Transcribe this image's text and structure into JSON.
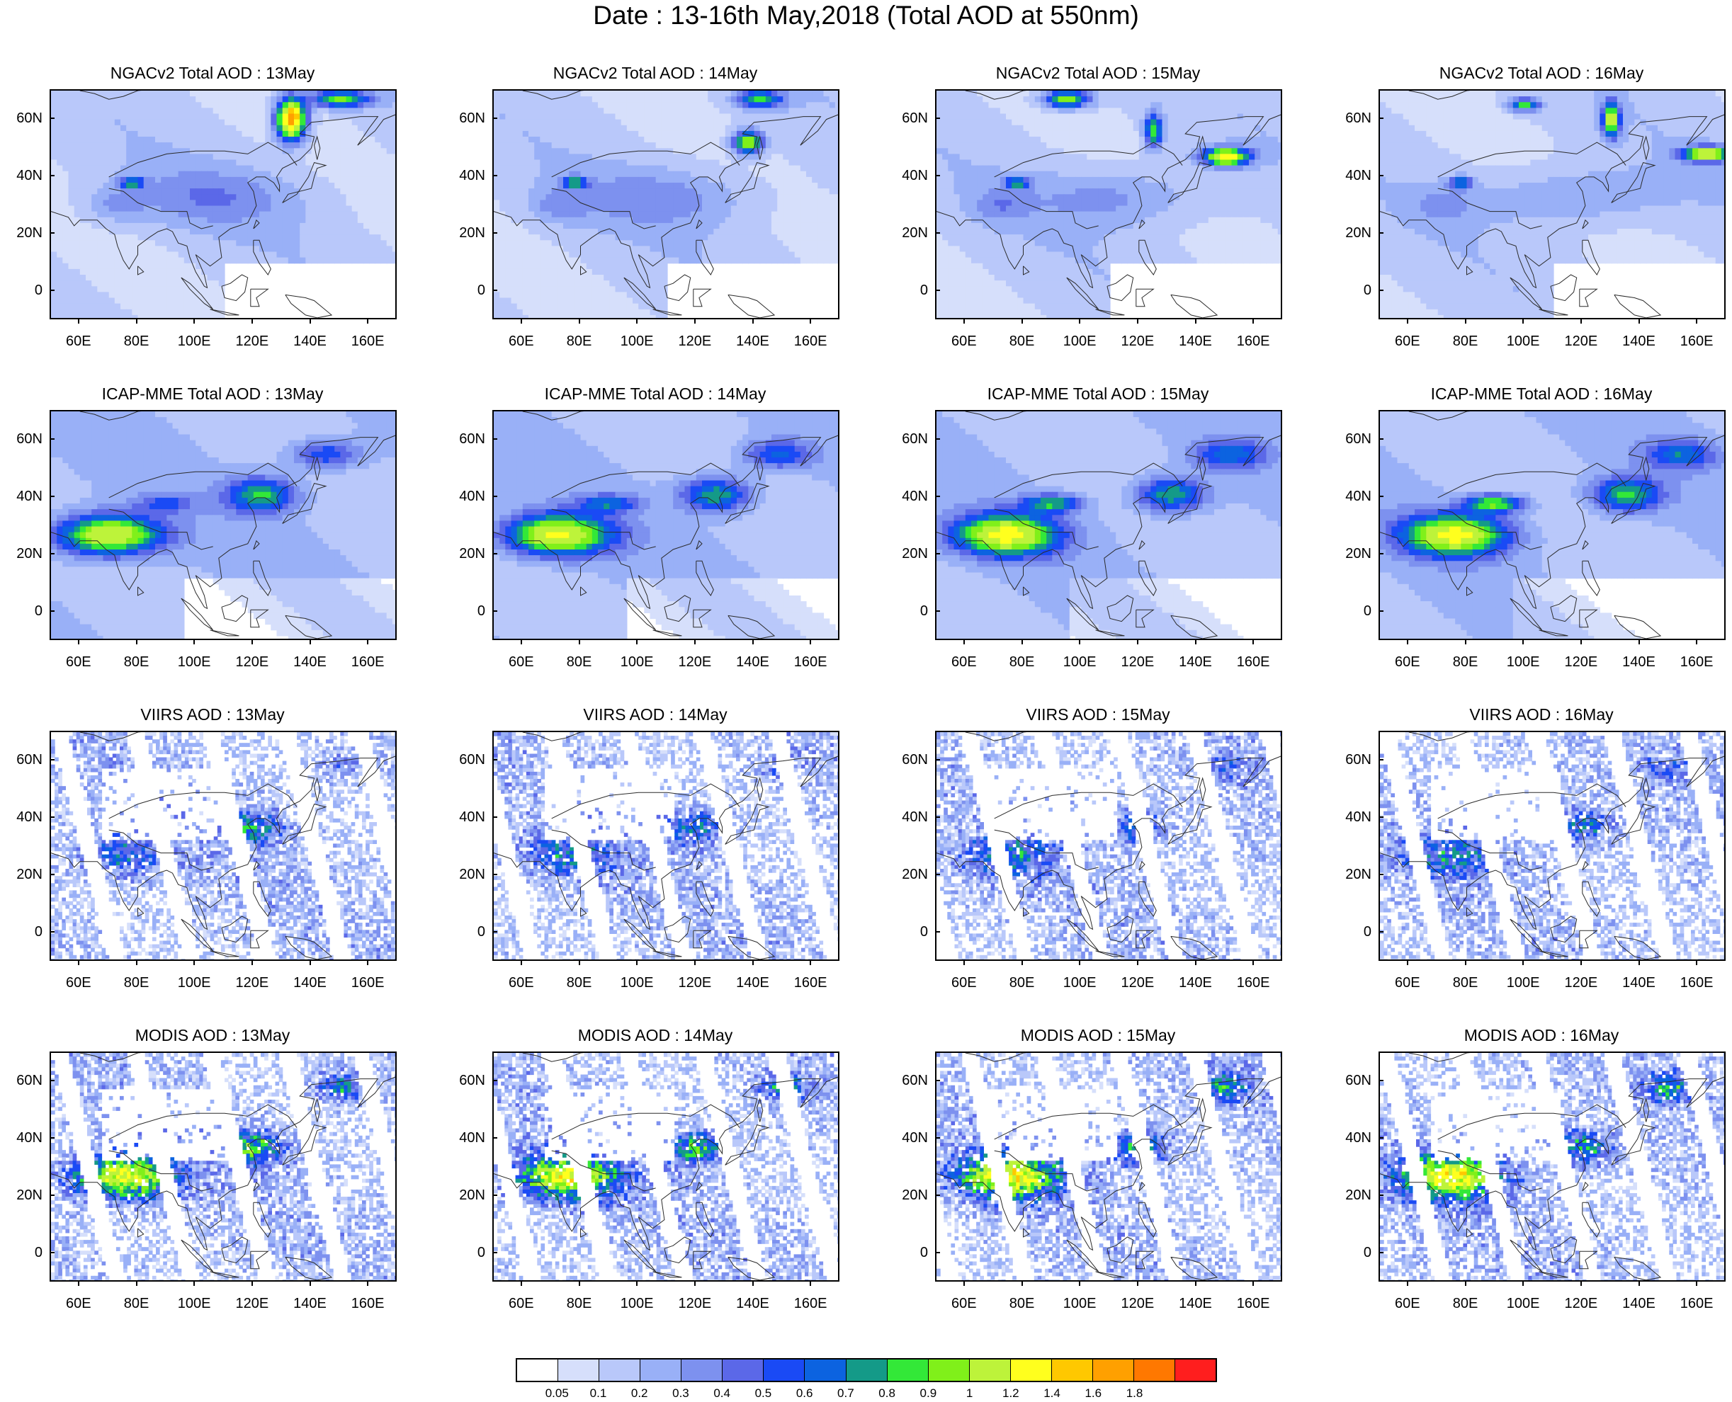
{
  "title": "Date : 13-16th May,2018 (Total AOD at 550nm)",
  "panels": [
    {
      "title": "NGACv2 Total AOD : 13May",
      "source": "NGACv2",
      "day": 13
    },
    {
      "title": "NGACv2 Total AOD : 14May",
      "source": "NGACv2",
      "day": 14
    },
    {
      "title": "NGACv2 Total AOD : 15May",
      "source": "NGACv2",
      "day": 15
    },
    {
      "title": "NGACv2 Total AOD : 16May",
      "source": "NGACv2",
      "day": 16
    },
    {
      "title": "ICAP-MME Total AOD : 13May",
      "source": "ICAP",
      "day": 13
    },
    {
      "title": "ICAP-MME Total AOD : 14May",
      "source": "ICAP",
      "day": 14
    },
    {
      "title": "ICAP-MME Total AOD : 15May",
      "source": "ICAP",
      "day": 15
    },
    {
      "title": "ICAP-MME Total AOD : 16May",
      "source": "ICAP",
      "day": 16
    },
    {
      "title": "VIIRS AOD : 13May",
      "source": "VIIRS",
      "day": 13
    },
    {
      "title": "VIIRS AOD : 14May",
      "source": "VIIRS",
      "day": 14
    },
    {
      "title": "VIIRS AOD : 15May",
      "source": "VIIRS",
      "day": 15
    },
    {
      "title": "VIIRS AOD : 16May",
      "source": "VIIRS",
      "day": 16
    },
    {
      "title": "MODIS AOD : 13May",
      "source": "MODIS",
      "day": 13
    },
    {
      "title": "MODIS AOD : 14May",
      "source": "MODIS",
      "day": 14
    },
    {
      "title": "MODIS AOD : 15May",
      "source": "MODIS",
      "day": 15
    },
    {
      "title": "MODIS AOD : 16May",
      "source": "MODIS",
      "day": 16
    }
  ],
  "map_extent": {
    "lon_min": 50,
    "lon_max": 170,
    "lat_min": -10,
    "lat_max": 70
  },
  "lon_ticks": [
    {
      "value": 60,
      "label": "60E"
    },
    {
      "value": 80,
      "label": "80E"
    },
    {
      "value": 100,
      "label": "100E"
    },
    {
      "value": 120,
      "label": "120E"
    },
    {
      "value": 140,
      "label": "140E"
    },
    {
      "value": 160,
      "label": "160E"
    }
  ],
  "lat_ticks": [
    {
      "value": 60,
      "label": "60N"
    },
    {
      "value": 40,
      "label": "40N"
    },
    {
      "value": 20,
      "label": "20N"
    },
    {
      "value": 0,
      "label": "0"
    }
  ],
  "colorbar": {
    "colors": [
      "#ffffff",
      "#d6dffb",
      "#b9c8fa",
      "#99b0f7",
      "#7d91ef",
      "#5b68e8",
      "#1a4af5",
      "#0c63e0",
      "#149a88",
      "#33e838",
      "#80f01a",
      "#bdf33a",
      "#ffff1e",
      "#ffc800",
      "#ffa000",
      "#ff7800",
      "#ff1e1e"
    ],
    "labels": [
      "0.05",
      "0.1",
      "0.2",
      "0.3",
      "0.4",
      "0.5",
      "0.6",
      "0.7",
      "0.8",
      "0.9",
      "1",
      "1.2",
      "1.4",
      "1.6",
      "1.8"
    ],
    "levels": [
      0.05,
      0.1,
      0.2,
      0.3,
      0.4,
      0.5,
      0.6,
      0.7,
      0.8,
      0.9,
      1,
      1.2,
      1.4,
      1.6,
      1.8
    ]
  }
}
